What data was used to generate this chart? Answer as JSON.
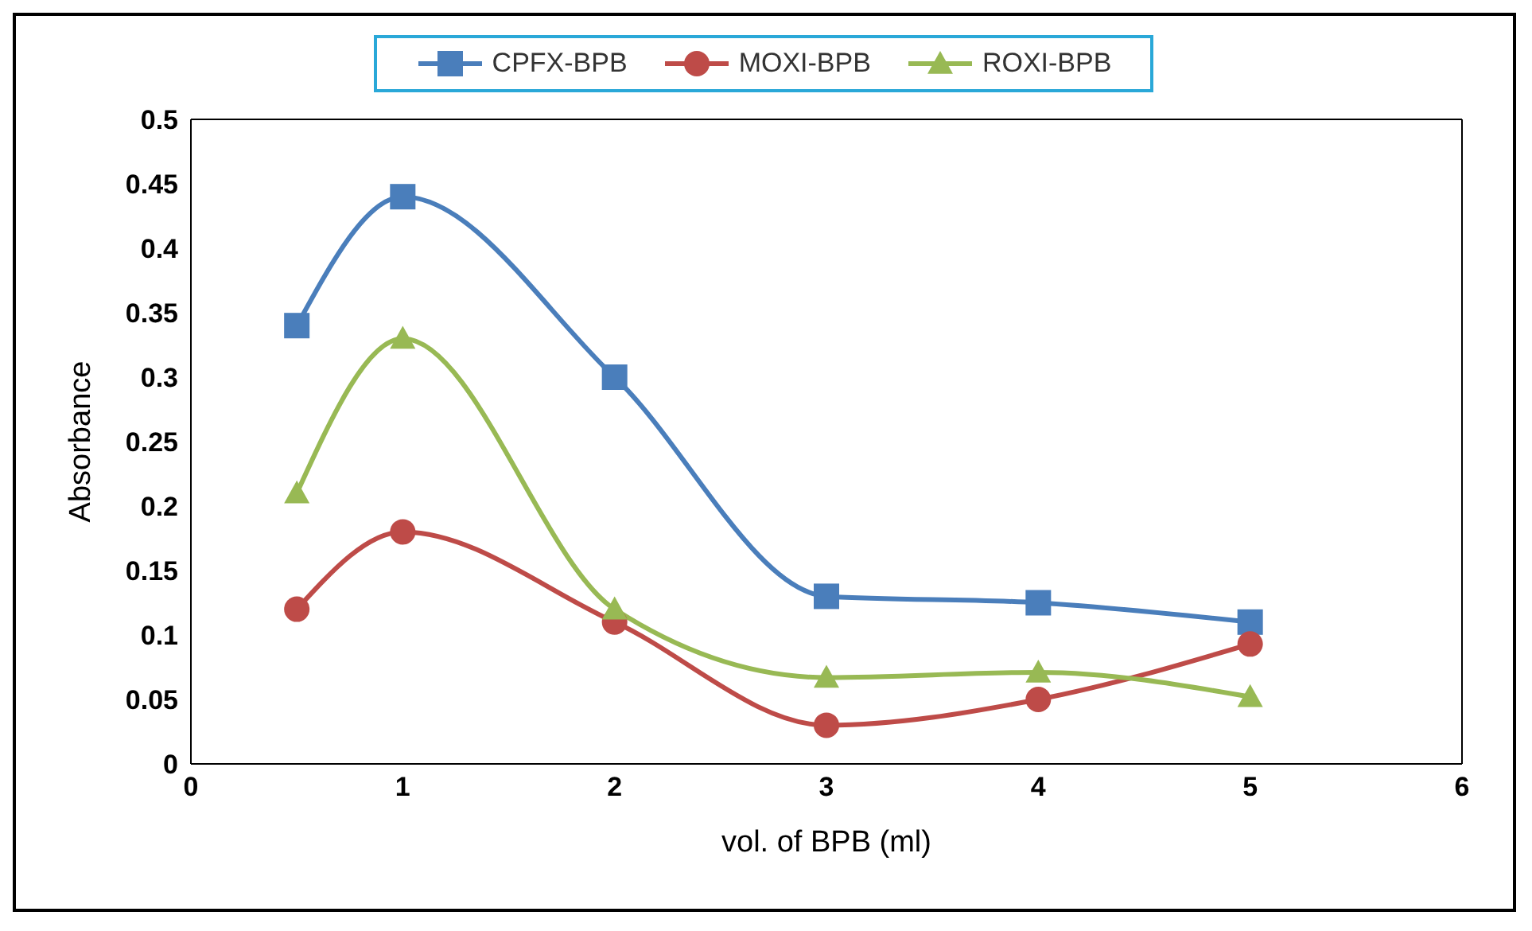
{
  "chart_data": {
    "type": "line",
    "xlabel": "vol. of BPB (ml)",
    "ylabel": "Absorbance",
    "x": [
      0.5,
      1,
      2,
      3,
      4,
      5
    ],
    "xlim": [
      0,
      6
    ],
    "xticks": [
      0,
      1,
      2,
      3,
      4,
      5,
      6
    ],
    "ylim": [
      0,
      0.5
    ],
    "yticks": [
      0,
      0.05,
      0.1,
      0.15,
      0.2,
      0.25,
      0.3,
      0.35,
      0.4,
      0.45,
      0.5
    ],
    "grid": false,
    "legend": "top",
    "series": [
      {
        "name": "CPFX-BPB",
        "color": "#4a7ebb",
        "marker": "square",
        "values": [
          0.34,
          0.44,
          0.3,
          0.13,
          0.125,
          0.11
        ]
      },
      {
        "name": "MOXI-BPB",
        "color": "#be4b48",
        "marker": "circle",
        "values": [
          0.12,
          0.18,
          0.11,
          0.03,
          0.05,
          0.093
        ]
      },
      {
        "name": "ROXI-BPB",
        "color": "#98b954",
        "marker": "triangle",
        "values": [
          0.21,
          0.33,
          0.12,
          0.067,
          0.071,
          0.052
        ]
      }
    ]
  }
}
